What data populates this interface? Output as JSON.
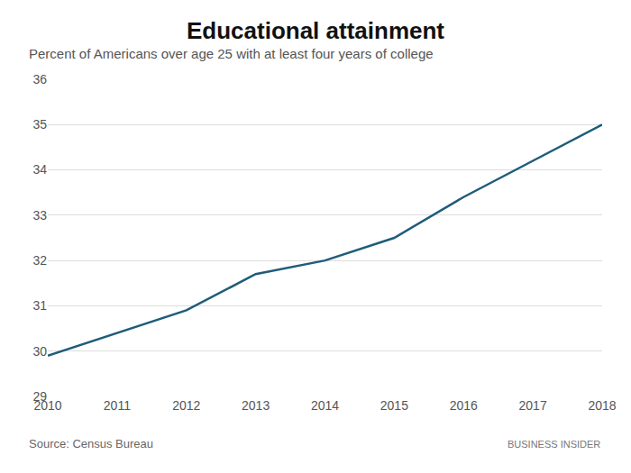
{
  "chart_data": {
    "type": "line",
    "title": "Educational attainment",
    "subtitle": "Percent of Americans over age 25 with at least four years of college",
    "x": [
      2010,
      2011,
      2012,
      2013,
      2014,
      2015,
      2016,
      2017,
      2018
    ],
    "values": [
      29.9,
      30.4,
      30.9,
      31.7,
      32.0,
      32.5,
      33.4,
      34.2,
      35.0
    ],
    "color": "#1f5c7a",
    "xlim": [
      2010,
      2018
    ],
    "xticks": [
      2010,
      2011,
      2012,
      2013,
      2014,
      2015,
      2016,
      2017,
      2018
    ],
    "ylim": [
      29,
      36
    ],
    "yticks": [
      29,
      30,
      31,
      32,
      33,
      34,
      35,
      36
    ],
    "grid": true,
    "annotations": [
      "Source: Census Bureau",
      "BUSINESS INSIDER"
    ]
  }
}
